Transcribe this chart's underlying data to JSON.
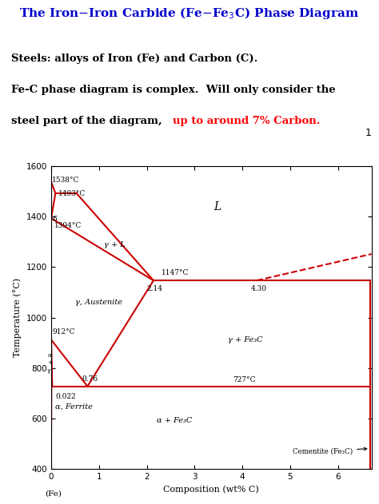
{
  "title": "The Iron–Iron Carbide (Fe–Fe$_3$C) Phase Diagram",
  "title_color": "#0000CC",
  "text1": "Steels: alloys of Iron (Fe) and Carbon (C).",
  "text2": "Fe-C phase diagram is complex.  Will only consider the",
  "text3_black": "steel part of the diagram, ",
  "text3_red": "up to around 7% Carbon.",
  "xlabel": "Composition (wt% C)",
  "ylabel": "Temperature (°C)",
  "xlim": [
    0,
    6.7
  ],
  "ylim": [
    400,
    1600
  ],
  "xticks": [
    0,
    1,
    2,
    3,
    4,
    5,
    6
  ],
  "yticks": [
    400,
    600,
    800,
    1000,
    1200,
    1400,
    1600
  ],
  "line_color": "#CC0000",
  "bg_color": "#FFFFFF",
  "page_num": "1"
}
